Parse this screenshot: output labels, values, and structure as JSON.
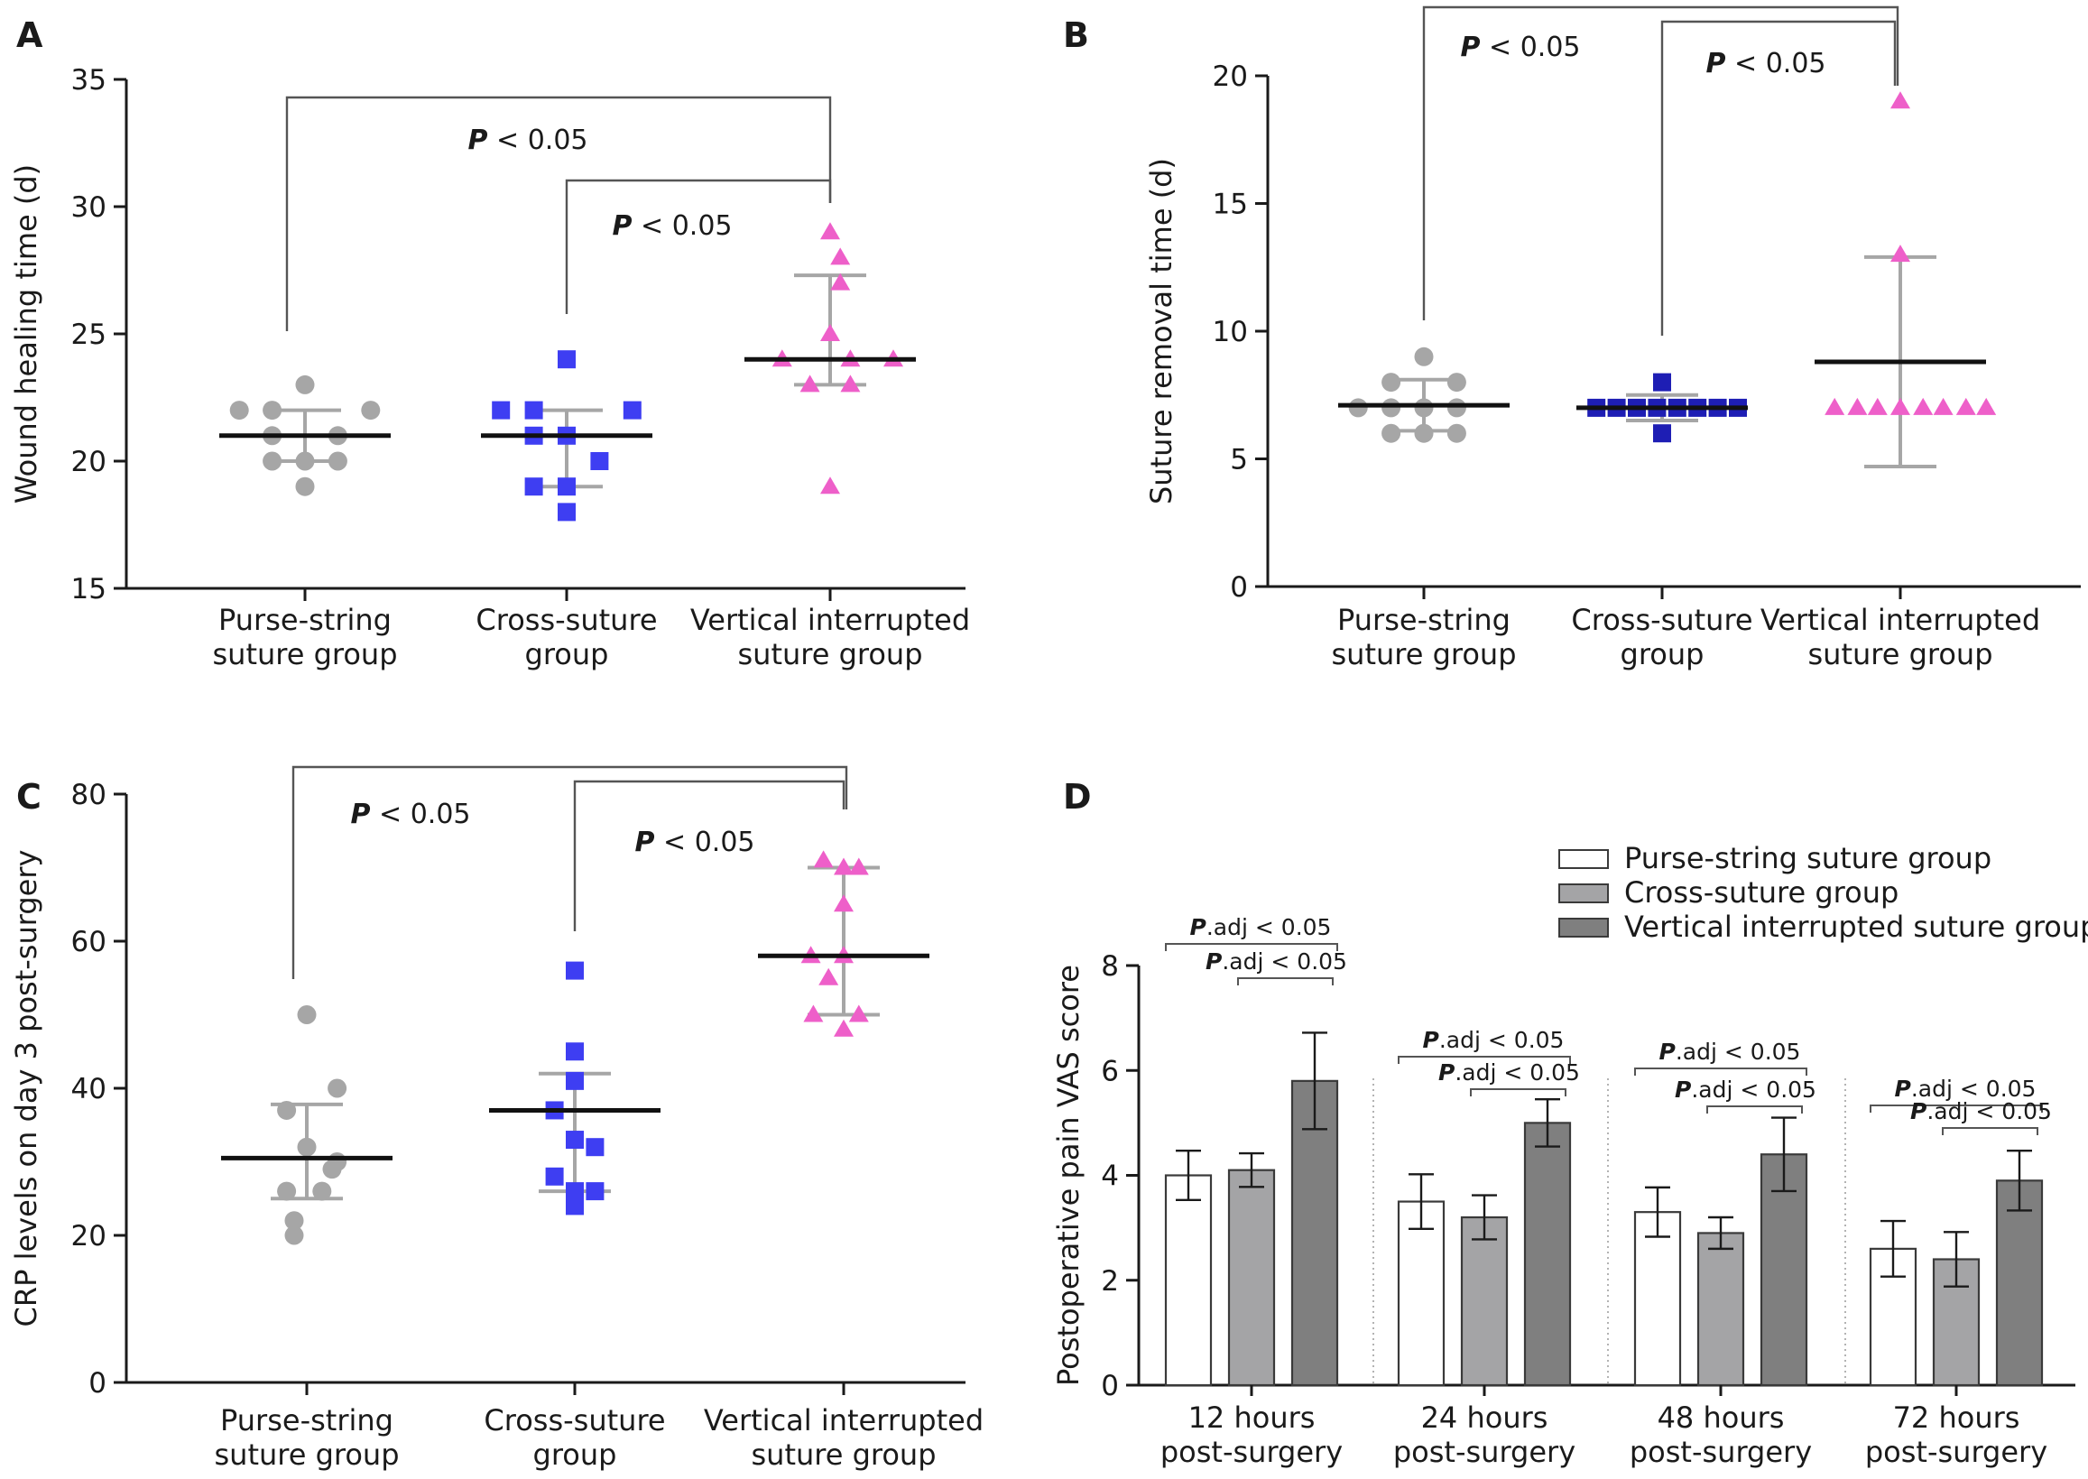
{
  "chart_data": [
    {
      "panel": "A",
      "type": "scatter",
      "ylabel": "Wound healing time (d)",
      "ylim": [
        15,
        35
      ],
      "yticks": [
        15,
        20,
        25,
        30,
        35
      ],
      "categories": [
        "Purse-string\nsuture group",
        "Cross-suture\ngroup",
        "Vertical interrupted\nsuture group"
      ],
      "series": [
        {
          "marker": "circle",
          "color": "#a6a6a6",
          "values": [
            22,
            21,
            22,
            23,
            21,
            20,
            20,
            22,
            19,
            20
          ],
          "mean": 21,
          "sd_low": 20,
          "sd_high": 22
        },
        {
          "marker": "square",
          "color": "#3e3ef2",
          "values": [
            22,
            22,
            21,
            22,
            21,
            19,
            19,
            18,
            24,
            20
          ],
          "mean": 21,
          "sd_low": 19,
          "sd_high": 22
        },
        {
          "marker": "triangle",
          "color": "#ee5fc9",
          "values": [
            28,
            29,
            27,
            25,
            24,
            24,
            24,
            23,
            23,
            19
          ],
          "mean": 24,
          "sd_low": 23,
          "sd_high": 27.3
        }
      ],
      "annotations": [
        {
          "text": "P < 0.05",
          "from": 0,
          "to": 2
        },
        {
          "text": "P < 0.05",
          "from": 1,
          "to": 2
        }
      ]
    },
    {
      "panel": "B",
      "type": "scatter",
      "ylabel": "Suture removal time (d)",
      "ylim": [
        0,
        20
      ],
      "yticks": [
        0,
        5,
        10,
        15,
        20
      ],
      "categories": [
        "Purse-string\nsuture group",
        "Cross-suture\ngroup",
        "Vertical interrupted\nsuture group"
      ],
      "series": [
        {
          "marker": "circle",
          "color": "#a6a6a6",
          "values": [
            9,
            8,
            8,
            7,
            7,
            7,
            7,
            6,
            6,
            6
          ],
          "mean": 7.1,
          "sd_low": 6.1,
          "sd_high": 8.1
        },
        {
          "marker": "square",
          "color": "#1e1eb4",
          "values": [
            8,
            7,
            7,
            7,
            7,
            7,
            7,
            7,
            7,
            6
          ],
          "mean": 7,
          "sd_low": 6.5,
          "sd_high": 7.5
        },
        {
          "marker": "triangle",
          "color": "#ee5fc9",
          "values": [
            19,
            13,
            7,
            7,
            7,
            7,
            7,
            7,
            7,
            7
          ],
          "mean": 8.8,
          "sd_low": 4.7,
          "sd_high": 12.9
        }
      ],
      "annotations": [
        {
          "text": "P < 0.05",
          "from": 0,
          "to": 2
        },
        {
          "text": "P < 0.05",
          "from": 1,
          "to": 2
        }
      ]
    },
    {
      "panel": "C",
      "type": "scatter",
      "ylabel": "CRP levels on day 3 post-surgery",
      "ylim": [
        0,
        80
      ],
      "yticks": [
        0,
        20,
        40,
        60,
        80
      ],
      "categories": [
        "Purse-string\nsuture group",
        "Cross-suture\ngroup",
        "Vertical interrupted\nsuture group"
      ],
      "series": [
        {
          "marker": "circle",
          "color": "#a6a6a6",
          "values": [
            50,
            40,
            37,
            32,
            30,
            26,
            26,
            29,
            22,
            20
          ],
          "mean": 30.5,
          "sd_low": 25,
          "sd_high": 37.8
        },
        {
          "marker": "square",
          "color": "#3e3ef2",
          "values": [
            56,
            45,
            41,
            37,
            33,
            32,
            28,
            26,
            26,
            24
          ],
          "mean": 37,
          "sd_low": 26,
          "sd_high": 42
        },
        {
          "marker": "triangle",
          "color": "#ee5fc9",
          "values": [
            71,
            70,
            70,
            65,
            58,
            58,
            55,
            50,
            50,
            48
          ],
          "mean": 58,
          "sd_low": 50,
          "sd_high": 70
        },
        {
          "name": "",
          "values": []
        }
      ],
      "annotations": [
        {
          "text": "P < 0.05",
          "from": 0,
          "to": 2
        },
        {
          "text": "P < 0.05",
          "from": 1,
          "to": 2
        }
      ]
    },
    {
      "panel": "D",
      "type": "bar",
      "ylabel": "Postoperative pain VAS score",
      "ylim": [
        0,
        8
      ],
      "yticks": [
        0,
        2,
        4,
        6,
        8
      ],
      "categories": [
        "12 hours\npost-surgery",
        "24 hours\npost-surgery",
        "48 hours\npost-surgery",
        "72 hours\npost-surgery"
      ],
      "series": [
        {
          "name": "Purse-string suture group",
          "color": "#ffffff",
          "values": [
            4.0,
            3.5,
            3.3,
            2.6
          ],
          "err": [
            0.47,
            0.52,
            0.47,
            0.53
          ]
        },
        {
          "name": "Cross-suture group",
          "color": "#a4a4a6",
          "values": [
            4.1,
            3.2,
            2.9,
            2.4
          ],
          "err": [
            0.32,
            0.42,
            0.3,
            0.52
          ]
        },
        {
          "name": "Vertical interrupted suture group",
          "color": "#7f7f7f",
          "values": [
            5.8,
            5.0,
            4.4,
            3.9
          ],
          "err": [
            0.92,
            0.45,
            0.7,
            0.57
          ]
        }
      ],
      "legend_position": "top-right",
      "annotations": [
        {
          "text": "P.adj < 0.05",
          "group": 0,
          "from": 0,
          "to": 2
        },
        {
          "text": "P.adj < 0.05",
          "group": 0,
          "from": 1,
          "to": 2
        },
        {
          "text": "P.adj < 0.05",
          "group": 1,
          "from": 0,
          "to": 2
        },
        {
          "text": "P.adj < 0.05",
          "group": 1,
          "from": 1,
          "to": 2
        },
        {
          "text": "P.adj < 0.05",
          "group": 2,
          "from": 0,
          "to": 2
        },
        {
          "text": "P.adj < 0.05",
          "group": 2,
          "from": 1,
          "to": 2
        },
        {
          "text": "P.adj < 0.05",
          "group": 3,
          "from": 0,
          "to": 2
        },
        {
          "text": "P.adj < 0.05",
          "group": 3,
          "from": 1,
          "to": 2
        }
      ]
    }
  ]
}
